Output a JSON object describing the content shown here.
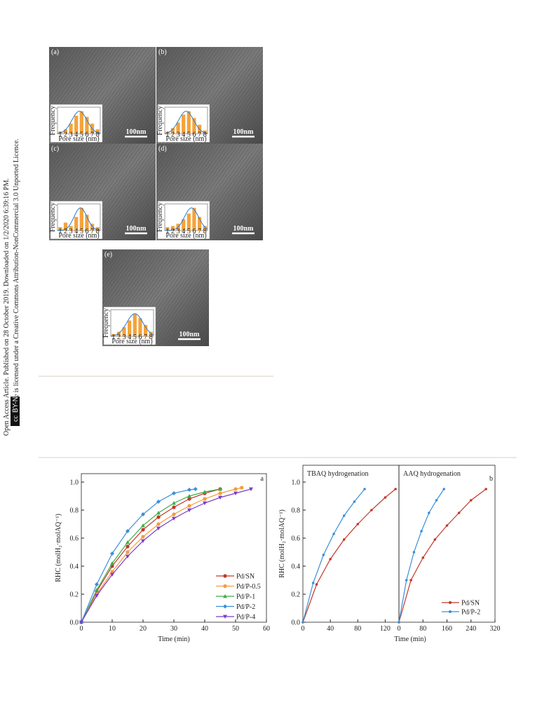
{
  "side_notice": {
    "line1": "Open Access Article. Published on 28 October 2019. Downloaded on 1/2/2020 6:39:16 PM.",
    "line2": "This article is licensed under a Creative Commons Attribution-NonCommercial 3.0 Unported Licence.",
    "badge_cc": "cc",
    "badge_text": "BY-NC"
  },
  "figure_tem": {
    "inset_ylabel": "Frequency",
    "inset_xlabel": "Pore size (nm)",
    "inset_xticks": [
      1,
      2,
      3,
      4,
      5,
      6,
      7,
      8
    ],
    "inset_xlim": [
      0.5,
      8.5
    ],
    "panels": [
      {
        "label": "(a)",
        "scale_bar": "100nm",
        "inset": {
          "bars": [
            0.1,
            0.2,
            0.45,
            0.8,
            1.0,
            0.75,
            0.45,
            0.2
          ],
          "fit_mean": 4.6,
          "fit_sd": 1.4
        }
      },
      {
        "label": "(b)",
        "scale_bar": "100nm",
        "inset": {
          "bars": [
            0.1,
            0.25,
            0.5,
            0.85,
            1.0,
            0.7,
            0.4,
            0.15
          ],
          "fit_mean": 4.5,
          "fit_sd": 1.4
        }
      },
      {
        "label": "(c)",
        "scale_bar": "100nm",
        "inset": {
          "bars": [
            0.15,
            0.35,
            0.2,
            0.6,
            1.0,
            0.7,
            0.3,
            0.15
          ],
          "fit_mean": 4.8,
          "fit_sd": 1.2
        }
      },
      {
        "label": "(d)",
        "scale_bar": "100nm",
        "inset": {
          "bars": [
            0.15,
            0.2,
            0.3,
            0.5,
            0.75,
            1.0,
            0.6,
            0.2
          ],
          "fit_mean": 5.5,
          "fit_sd": 1.3
        }
      },
      {
        "label": "(e)",
        "scale_bar": "100nm",
        "inset": {
          "bars": [
            0.1,
            0.2,
            0.4,
            0.7,
            1.0,
            0.8,
            0.5,
            0.2
          ],
          "fit_mean": 5.0,
          "fit_sd": 1.5
        }
      }
    ]
  },
  "chart_data": [
    {
      "type": "line",
      "label": "a",
      "xlabel": "Time (min)",
      "ylabel": "RHC (molH₂·molAQ⁻¹)",
      "xlim": [
        0,
        60
      ],
      "xticks": [
        0,
        10,
        20,
        30,
        40,
        50,
        60
      ],
      "ylim": [
        0,
        1.06
      ],
      "yticks": [
        {
          "value": 0,
          "label": "0.0"
        },
        0.2,
        0.4,
        0.6,
        0.8,
        {
          "value": 1,
          "label": "1.0"
        }
      ],
      "legend": "lower right",
      "series": [
        {
          "name": "Pd/SN",
          "color": "#c0392b",
          "marker": "circle",
          "x": [
            0,
            5,
            10,
            15,
            20,
            25,
            30,
            35,
            40,
            45
          ],
          "values": [
            0,
            0.22,
            0.4,
            0.54,
            0.66,
            0.75,
            0.82,
            0.88,
            0.92,
            0.95
          ]
        },
        {
          "name": "Pd/P-0.5",
          "color": "#f39c3d",
          "marker": "circle",
          "x": [
            0,
            5,
            10,
            15,
            20,
            25,
            30,
            35,
            40,
            45,
            50,
            52
          ],
          "values": [
            0,
            0.2,
            0.36,
            0.5,
            0.61,
            0.7,
            0.77,
            0.83,
            0.88,
            0.92,
            0.95,
            0.96
          ]
        },
        {
          "name": "Pd/P-1",
          "color": "#3fae49",
          "marker": "triangle",
          "x": [
            0,
            5,
            10,
            15,
            20,
            25,
            30,
            35,
            40,
            45
          ],
          "values": [
            0,
            0.23,
            0.42,
            0.57,
            0.69,
            0.78,
            0.85,
            0.9,
            0.93,
            0.95
          ]
        },
        {
          "name": "Pd/P-2",
          "color": "#3a8fd9",
          "marker": "diamond",
          "x": [
            0,
            5,
            10,
            15,
            20,
            25,
            30,
            35,
            37
          ],
          "values": [
            0,
            0.27,
            0.49,
            0.65,
            0.77,
            0.86,
            0.92,
            0.945,
            0.95
          ]
        },
        {
          "name": "Pd/P-4",
          "color": "#7d3cc8",
          "marker": "triangle-down",
          "x": [
            0,
            5,
            10,
            15,
            20,
            25,
            30,
            35,
            40,
            45,
            50,
            55
          ],
          "values": [
            0,
            0.19,
            0.34,
            0.47,
            0.58,
            0.67,
            0.74,
            0.8,
            0.85,
            0.89,
            0.92,
            0.95
          ]
        }
      ]
    },
    {
      "type": "line",
      "label": "b",
      "xlabel": "Time (min)",
      "ylabel": "RHC (molH₂·molAQ⁻¹)",
      "ylim": [
        0,
        1.12
      ],
      "yticks": [
        {
          "value": 0,
          "label": "0.0"
        },
        0.2,
        0.4,
        0.6,
        0.8,
        {
          "value": 1,
          "label": "1.0"
        }
      ],
      "legend": "lower right",
      "legend_entries": [
        {
          "name": "Pd/SN",
          "color": "#c0392b"
        },
        {
          "name": "Pd/P-2",
          "color": "#3a8fd9"
        }
      ],
      "panels": [
        {
          "title": "TBAQ hydrogenation",
          "xlim": [
            0,
            140
          ],
          "xticks": [
            0,
            40,
            80,
            120
          ],
          "series": [
            {
              "x": [
                0,
                20,
                40,
                60,
                80,
                100,
                120,
                135
              ],
              "values": [
                0,
                0.27,
                0.45,
                0.59,
                0.7,
                0.8,
                0.89,
                0.95
              ]
            },
            {
              "x": [
                0,
                15,
                30,
                45,
                60,
                75,
                90
              ],
              "values": [
                0,
                0.28,
                0.48,
                0.63,
                0.76,
                0.86,
                0.95
              ]
            }
          ]
        },
        {
          "title": "AAQ hydrogenation",
          "xlim": [
            0,
            320
          ],
          "xticks": [
            0,
            80,
            160,
            240,
            320
          ],
          "series": [
            {
              "x": [
                0,
                40,
                80,
                120,
                160,
                200,
                240,
                290
              ],
              "values": [
                0,
                0.3,
                0.46,
                0.59,
                0.69,
                0.78,
                0.87,
                0.95
              ]
            },
            {
              "x": [
                0,
                25,
                50,
                75,
                100,
                125,
                150
              ],
              "values": [
                0,
                0.3,
                0.5,
                0.65,
                0.78,
                0.87,
                0.95
              ]
            }
          ]
        }
      ]
    }
  ]
}
